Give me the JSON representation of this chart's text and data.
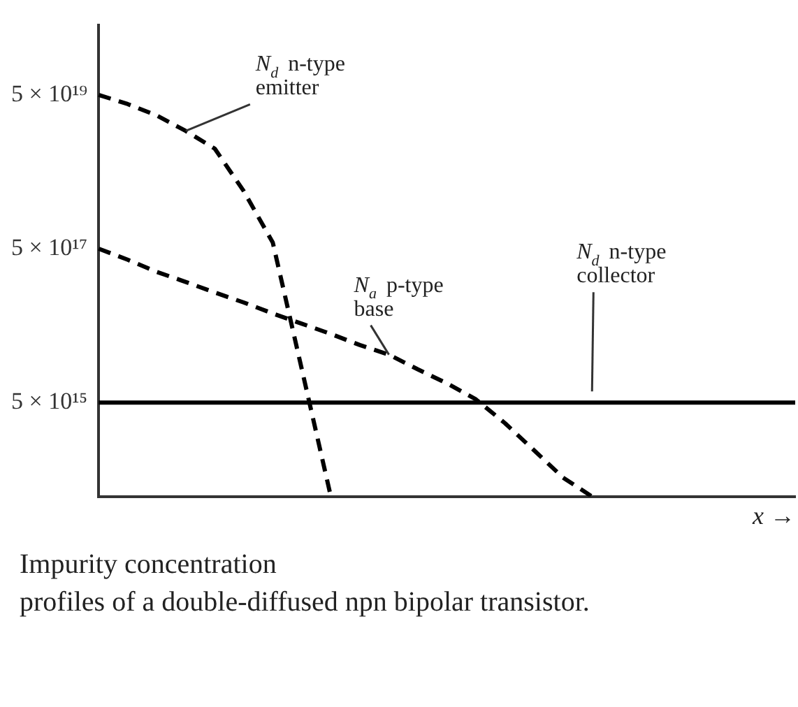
{
  "chart_data": {
    "type": "line",
    "xlabel": "x →",
    "categories": [
      null,
      null,
      null,
      null,
      null,
      null,
      null,
      null,
      null,
      null,
      null,
      null,
      null,
      null,
      null,
      null,
      null,
      null,
      null,
      null,
      null,
      null,
      null,
      null,
      null
    ],
    "ylim": [
      300000000000000.0,
      4e+20
    ],
    "log": "y",
    "tick_labels": "y",
    "grid": false,
    "legend": false,
    "marker": "none",
    "yticks": [
      {
        "value": 5000000000000000.0,
        "label": "5 × 10¹⁵"
      },
      {
        "value": 5e+17,
        "label": "5 × 10¹⁷"
      },
      {
        "value": 5e+19,
        "label": "5 × 10¹⁹"
      }
    ],
    "series": [
      {
        "name": "N$_{d}$ n-type\nemitter",
        "color": "#000000",
        "line_style": "dashed",
        "values": [
          5e+19,
          3.8e+19,
          2.7e+19,
          1.7e+19,
          1e+19,
          2.8e+18,
          6e+17,
          1.35e+16,
          300000000000000.0,
          null,
          null,
          null,
          null,
          null,
          null,
          null,
          null,
          null,
          null,
          null,
          null,
          null,
          null,
          null,
          null
        ]
      },
      {
        "name": "N$_{a}$ p-type\nbase",
        "color": "#000000",
        "line_style": "dashed",
        "values": [
          5e+17,
          3.6e+17,
          2.5e+17,
          1.85e+17,
          1.35e+17,
          1e+17,
          7.2e+16,
          5.3e+16,
          3.9e+16,
          2.8e+16,
          2.1e+16,
          1.35e+16,
          8900000000000000.0,
          5500000000000000.0,
          2700000000000000.0,
          1200000000000000.0,
          530000000000000.0,
          300000000000000.0,
          null,
          null,
          null,
          null,
          null,
          null,
          null
        ]
      },
      {
        "name": "N$_{d}$ n-type\ncollector",
        "color": "#000000",
        "line_style": "solid",
        "values": [
          5000000000000000.0,
          5000000000000000.0,
          5000000000000000.0,
          5000000000000000.0,
          5000000000000000.0,
          5000000000000000.0,
          5000000000000000.0,
          5000000000000000.0,
          5000000000000000.0,
          5000000000000000.0,
          5000000000000000.0,
          5000000000000000.0,
          5000000000000000.0,
          5000000000000000.0,
          5000000000000000.0,
          5000000000000000.0,
          5000000000000000.0,
          5000000000000000.0,
          5000000000000000.0,
          5000000000000000.0,
          5000000000000000.0,
          5000000000000000.0,
          5000000000000000.0,
          5000000000000000.0,
          5000000000000000.0
        ]
      }
    ],
    "annotations": [
      "Impurity concentration",
      "profiles of a double-diffused npn bipolar transistor."
    ]
  }
}
